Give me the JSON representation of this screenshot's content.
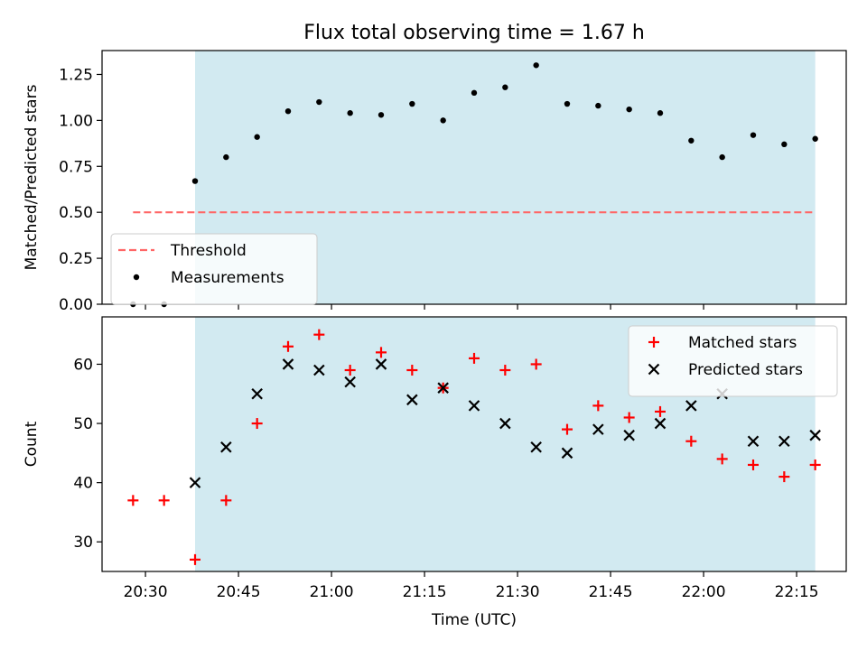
{
  "title": "Flux total observing time = 1.67 h",
  "colors": {
    "shade": "#add8e6",
    "threshold": "#ff6666",
    "matched": "#ff0000",
    "predicted": "#000000",
    "measurement": "#000000"
  },
  "chart_data": [
    {
      "type": "scatter",
      "ylabel": "Matched/Predicted stars",
      "xlabel": "",
      "ylim": [
        0.0,
        1.38
      ],
      "yticks": [
        0.0,
        0.25,
        0.5,
        0.75,
        1.0,
        1.25
      ],
      "ytick_labels": [
        "0.00",
        "0.25",
        "0.50",
        "0.75",
        "1.00",
        "1.25"
      ],
      "shaded_span": {
        "x": [
          "20:38",
          "22:18"
        ],
        "color": "#add8e6"
      },
      "threshold": {
        "name": "Threshold",
        "y": 0.5,
        "x": [
          "20:28",
          "22:18"
        ],
        "style": "dashed"
      },
      "legend": {
        "placement": "lower-left",
        "entries": [
          "Threshold",
          "Measurements"
        ]
      },
      "series": [
        {
          "name": "Measurements",
          "marker": "dot",
          "x": [
            "20:28",
            "20:33",
            "20:38",
            "20:43",
            "20:48",
            "20:53",
            "20:58",
            "21:03",
            "21:08",
            "21:13",
            "21:18",
            "21:23",
            "21:28",
            "21:33",
            "21:38",
            "21:43",
            "21:48",
            "21:53",
            "21:58",
            "22:03",
            "22:08",
            "22:13",
            "22:18"
          ],
          "y": [
            0.0,
            0.0,
            0.67,
            0.8,
            0.91,
            1.05,
            1.1,
            1.04,
            1.03,
            1.09,
            1.0,
            1.15,
            1.18,
            1.3,
            1.09,
            1.08,
            1.06,
            1.04,
            0.89,
            0.8,
            0.92,
            0.87,
            0.9
          ]
        }
      ]
    },
    {
      "type": "scatter",
      "ylabel": "Count",
      "xlabel": "Time (UTC)",
      "ylim": [
        25,
        68
      ],
      "yticks": [
        30,
        40,
        50,
        60
      ],
      "ytick_labels": [
        "30",
        "40",
        "50",
        "60"
      ],
      "xlim": [
        "20:23",
        "22:23"
      ],
      "xticks": [
        "20:30",
        "20:45",
        "21:00",
        "21:15",
        "21:30",
        "21:45",
        "22:00",
        "22:15"
      ],
      "shaded_span": {
        "x": [
          "20:38",
          "22:18"
        ],
        "color": "#add8e6"
      },
      "legend": {
        "placement": "upper-right",
        "entries": [
          "Matched stars",
          "Predicted stars"
        ]
      },
      "series": [
        {
          "name": "Matched stars",
          "marker": "plus",
          "x": [
            "20:28",
            "20:33",
            "20:38",
            "20:43",
            "20:48",
            "20:53",
            "20:58",
            "21:03",
            "21:08",
            "21:13",
            "21:18",
            "21:23",
            "21:28",
            "21:33",
            "21:38",
            "21:43",
            "21:48",
            "21:53",
            "21:58",
            "22:03",
            "22:08",
            "22:13",
            "22:18"
          ],
          "y": [
            37,
            37,
            27,
            37,
            50,
            63,
            65,
            59,
            62,
            59,
            56,
            61,
            59,
            60,
            49,
            53,
            51,
            52,
            47,
            44,
            43,
            41,
            43
          ]
        },
        {
          "name": "Predicted stars",
          "marker": "x",
          "x": [
            "20:38",
            "20:43",
            "20:48",
            "20:53",
            "20:58",
            "21:03",
            "21:08",
            "21:13",
            "21:18",
            "21:23",
            "21:28",
            "21:33",
            "21:38",
            "21:43",
            "21:48",
            "21:53",
            "21:58",
            "22:03",
            "22:08",
            "22:13",
            "22:18"
          ],
          "y": [
            40,
            46,
            55,
            60,
            59,
            57,
            60,
            54,
            56,
            53,
            50,
            46,
            45,
            49,
            48,
            50,
            53,
            55,
            47,
            47,
            48
          ]
        }
      ]
    }
  ]
}
